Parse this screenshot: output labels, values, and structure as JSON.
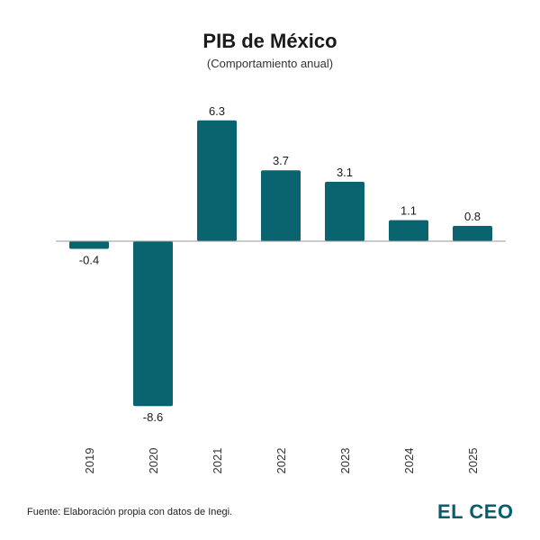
{
  "chart_data": {
    "type": "bar",
    "title": "PIB de México",
    "subtitle": "(Comportamiento anual)",
    "categories": [
      "2019",
      "2020",
      "2021",
      "2022",
      "2023",
      "2024",
      "2025"
    ],
    "values": [
      -0.4,
      -8.6,
      6.3,
      3.7,
      3.1,
      1.1,
      0.8
    ],
    "data_labels": [
      "-0.4",
      "-8.6",
      "6.3",
      "3.7",
      "3.1",
      "1.1",
      "0.8"
    ],
    "xlabel": "",
    "ylabel": "",
    "ylim": [
      -8.6,
      6.3
    ],
    "grid": false,
    "bar_color": "#0a6470",
    "axis_color": "#9a9a9a"
  },
  "footer": {
    "source": "Fuente: Elaboración propia con datos de Inegi.",
    "brand": "EL CEO",
    "brand_color": "#0a5d6a"
  }
}
